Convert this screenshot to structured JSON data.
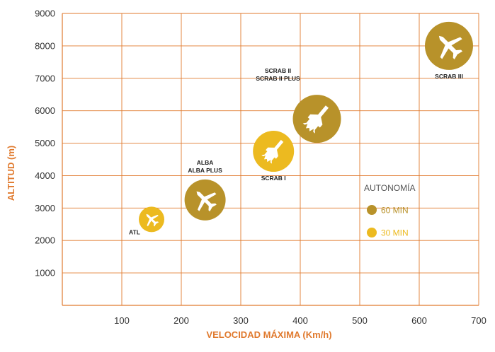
{
  "chart_data": {
    "type": "scatter",
    "xlabel": "VELOCIDAD MÁXIMA (Km/h)",
    "ylabel": "ALTITUD (m)",
    "xlim": [
      0,
      700
    ],
    "ylim": [
      0,
      9000
    ],
    "xticks": [
      100,
      200,
      300,
      400,
      500,
      600,
      700
    ],
    "yticks": [
      1000,
      2000,
      3000,
      4000,
      5000,
      6000,
      7000,
      8000,
      9000
    ],
    "grid": true,
    "legend": {
      "title": "AUTONOMÍA",
      "placement": "right",
      "entries": [
        {
          "label": "60 MIN",
          "color": "#B8922A"
        },
        {
          "label": "30 MIN",
          "color": "#ECBA20"
        }
      ]
    },
    "points": [
      {
        "label": [
          "ATL"
        ],
        "x": 150,
        "y": 2650,
        "autonomia": "30 MIN",
        "size": "small",
        "icon": "plane-icon",
        "label_pos": "below-left"
      },
      {
        "label": [
          "ALBA",
          "ALBA PLUS"
        ],
        "x": 240,
        "y": 3250,
        "autonomia": "60 MIN",
        "size": "medium",
        "icon": "plane-icon",
        "label_pos": "above"
      },
      {
        "label": [
          "SCRAB I"
        ],
        "x": 355,
        "y": 4750,
        "autonomia": "30 MIN",
        "size": "medium",
        "icon": "jet-icon",
        "label_pos": "below"
      },
      {
        "label": [
          "SCRAB II",
          "SCRAB II PLUS"
        ],
        "x": 428,
        "y": 5750,
        "autonomia": "60 MIN",
        "size": "large",
        "icon": "jet-icon",
        "label_pos": "above-left"
      },
      {
        "label": [
          "SCRAB III"
        ],
        "x": 650,
        "y": 8000,
        "autonomia": "60 MIN",
        "size": "large",
        "icon": "plane-icon",
        "label_pos": "below"
      }
    ]
  },
  "colors": {
    "grid": "#E07A2E",
    "axis_title": "#E07A2E",
    "series_60": "#B8922A",
    "series_30": "#ECBA20"
  }
}
